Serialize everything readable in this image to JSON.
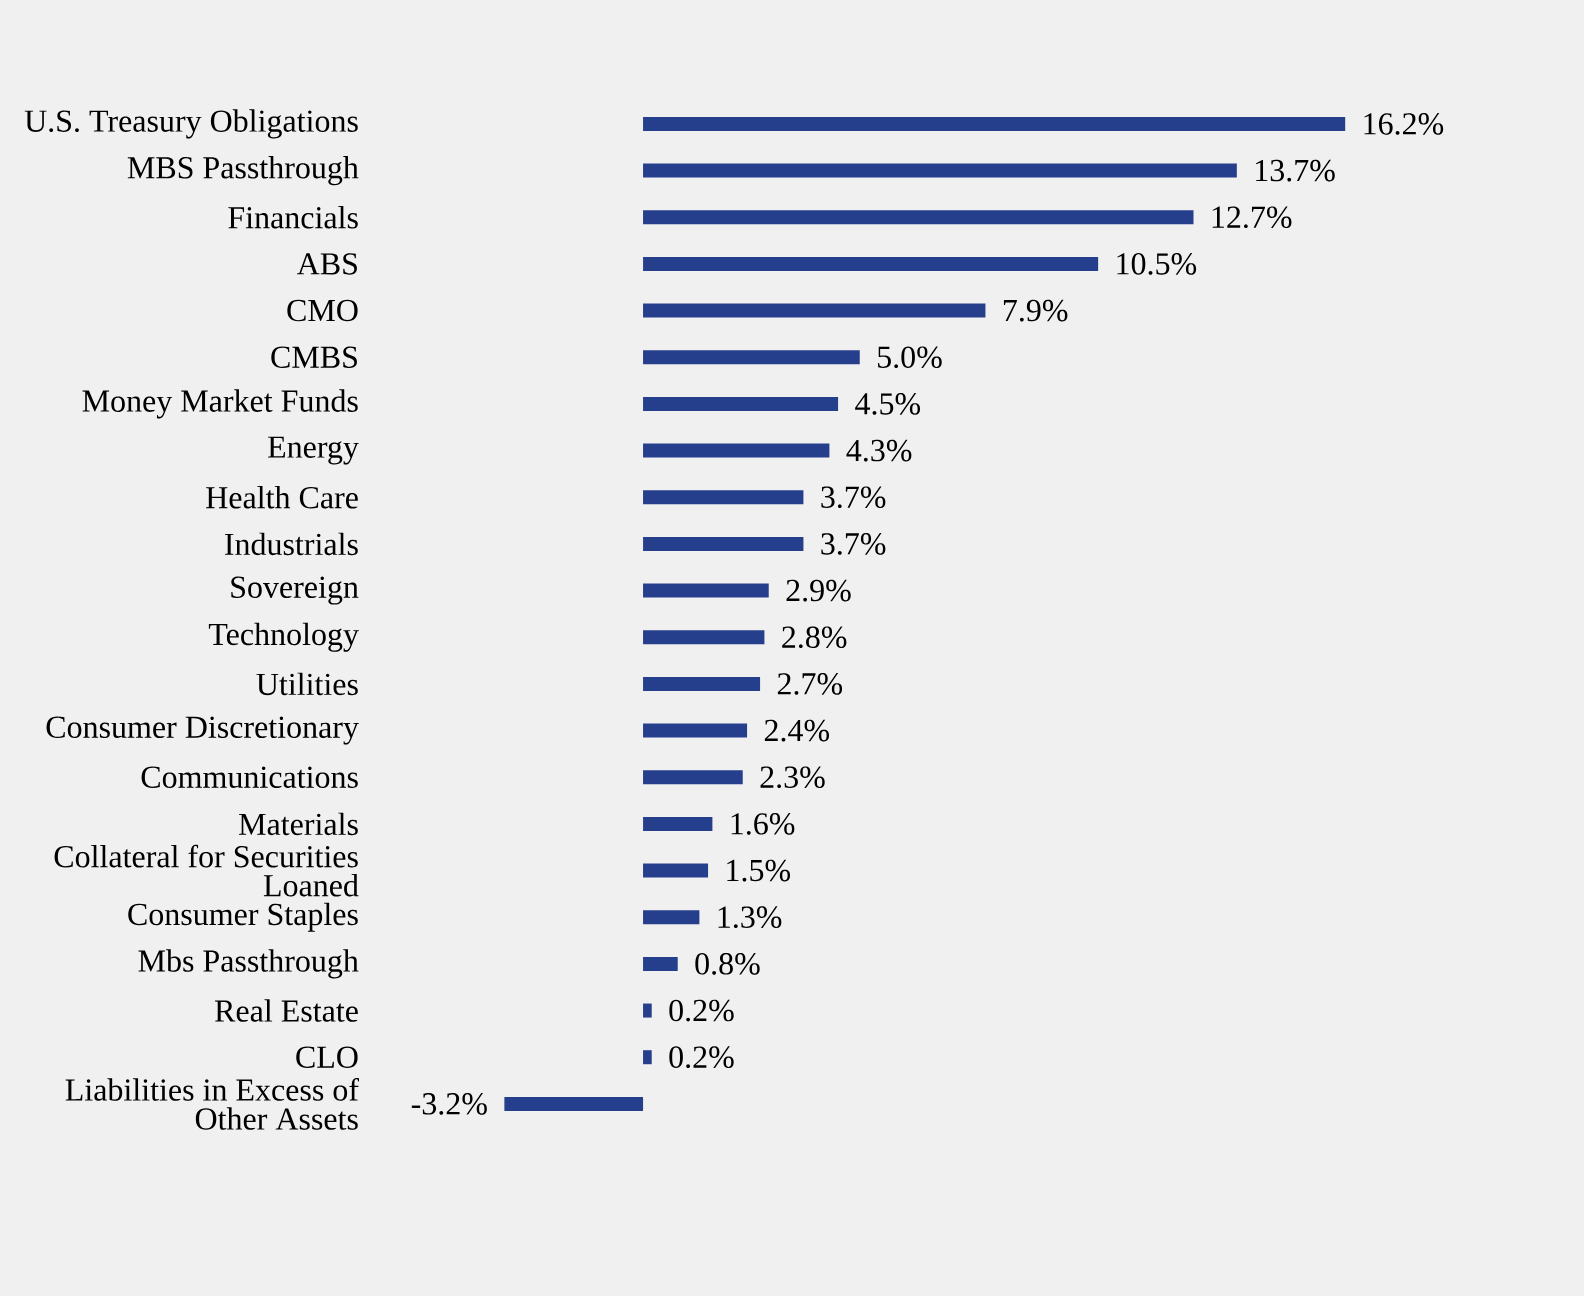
{
  "chart_data": {
    "type": "bar",
    "color": "#263f8c",
    "categories": [
      "U.S. Treasury Obligations",
      "MBS Passthrough",
      "Financials",
      "ABS",
      "CMO",
      "CMBS",
      "Money Market Funds",
      "Energy",
      "Health Care",
      "Industrials",
      "Sovereign",
      "Technology",
      "Utilities",
      "Consumer Discretionary",
      "Communications",
      "Materials",
      "Collateral for Securities Loaned",
      "Consumer Staples",
      "Mbs Passthrough",
      "Real Estate",
      "CLO",
      "Liabilities in Excess of Other Assets"
    ],
    "values": [
      16.2,
      13.7,
      12.7,
      10.5,
      7.9,
      5.0,
      4.5,
      4.3,
      3.7,
      3.7,
      2.9,
      2.8,
      2.7,
      2.4,
      2.3,
      1.6,
      1.5,
      1.3,
      0.8,
      0.2,
      0.2,
      -3.2
    ],
    "value_labels": [
      "16.2%",
      "13.7%",
      "12.7%",
      "10.5%",
      "7.9%",
      "5.0%",
      "4.5%",
      "4.3%",
      "3.7%",
      "3.7%",
      "2.9%",
      "2.8%",
      "2.7%",
      "2.4%",
      "2.3%",
      "1.6%",
      "1.5%",
      "1.3%",
      "0.8%",
      "0.2%",
      "0.2%",
      "-3.2%"
    ],
    "orientation": "horizontal"
  }
}
